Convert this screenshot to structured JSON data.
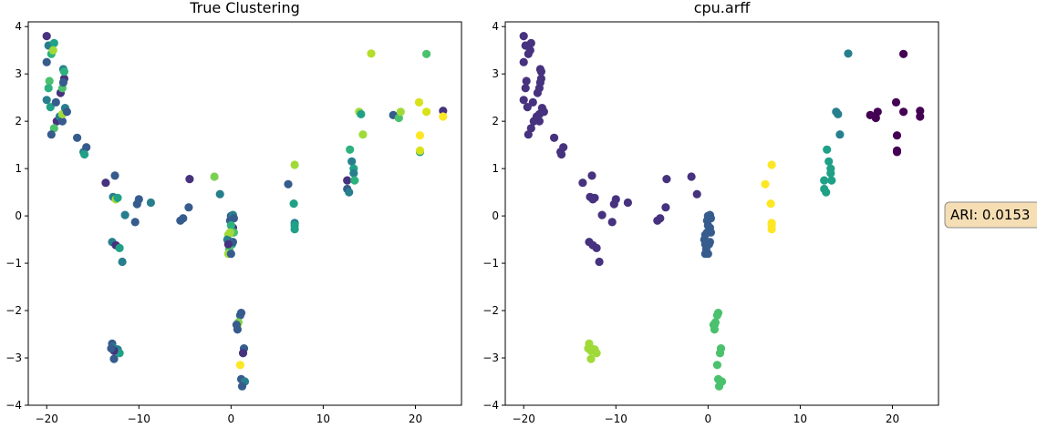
{
  "chart_data": [
    {
      "type": "scatter",
      "title": "True Clustering",
      "xlim": [
        -22,
        25
      ],
      "ylim": [
        -4,
        4.1
      ],
      "xticks": [
        -20,
        -10,
        0,
        10,
        20
      ],
      "yticks": [
        -4,
        -3,
        -2,
        -1,
        0,
        1,
        2,
        3,
        4
      ],
      "xticklabels": [
        "−20",
        "−10",
        "0",
        "10",
        "20"
      ],
      "yticklabels": [
        "−4",
        "−3",
        "−2",
        "−1",
        "0",
        "1",
        "2",
        "3",
        "4"
      ],
      "grid": false,
      "points": [
        [
          -20.0,
          3.8,
          "#46327e"
        ],
        [
          -19.8,
          3.6,
          "#277f8e"
        ],
        [
          -19.2,
          3.65,
          "#1fa187"
        ],
        [
          -19.5,
          3.42,
          "#2db27d"
        ],
        [
          -19.3,
          3.5,
          "#a0da39"
        ],
        [
          -20.0,
          3.25,
          "#365c8d"
        ],
        [
          -19.7,
          2.85,
          "#4ac16d"
        ],
        [
          -19.8,
          2.7,
          "#2db27d"
        ],
        [
          -20.0,
          2.45,
          "#277f8e"
        ],
        [
          -19.6,
          2.3,
          "#1fa187"
        ],
        [
          -19.0,
          2.4,
          "#365c8d"
        ],
        [
          -18.9,
          2.0,
          "#46327e"
        ],
        [
          -18.6,
          2.1,
          "#277f8e"
        ],
        [
          -18.3,
          2.0,
          "#365c8d"
        ],
        [
          -18.3,
          2.15,
          "#a0da39"
        ],
        [
          -18.0,
          2.28,
          "#277f8e"
        ],
        [
          -17.8,
          2.2,
          "#365c8d"
        ],
        [
          -19.2,
          1.85,
          "#4ac16d"
        ],
        [
          -19.5,
          1.72,
          "#365c8d"
        ],
        [
          -18.1,
          2.9,
          "#46327e"
        ],
        [
          -18.2,
          3.1,
          "#277f8e"
        ],
        [
          -18.1,
          3.05,
          "#2db27d"
        ],
        [
          -18.5,
          2.6,
          "#46327e"
        ],
        [
          -18.3,
          2.7,
          "#4ac16d"
        ],
        [
          -18.2,
          2.82,
          "#365c8d"
        ],
        [
          -16.7,
          1.65,
          "#365c8d"
        ],
        [
          -16.0,
          1.35,
          "#277f8e"
        ],
        [
          -15.7,
          1.45,
          "#365c8d"
        ],
        [
          -15.9,
          1.3,
          "#1fa187"
        ],
        [
          -13.6,
          0.7,
          "#46327e"
        ],
        [
          -12.6,
          0.85,
          "#365c8d"
        ],
        [
          -12.8,
          0.4,
          "#277f8e"
        ],
        [
          -12.5,
          0.35,
          "#a0da39"
        ],
        [
          -12.3,
          0.38,
          "#1fa187"
        ],
        [
          -11.5,
          0.02,
          "#277f8e"
        ],
        [
          -10.2,
          0.25,
          "#365c8d"
        ],
        [
          -10.0,
          0.35,
          "#365c8d"
        ],
        [
          -10.4,
          -0.13,
          "#365c8d"
        ],
        [
          -8.7,
          0.28,
          "#277f8e"
        ],
        [
          -4.5,
          0.78,
          "#46327e"
        ],
        [
          -4.6,
          0.18,
          "#365c8d"
        ],
        [
          -5.2,
          -0.05,
          "#365c8d"
        ],
        [
          -5.5,
          -0.1,
          "#365c8d"
        ],
        [
          -1.8,
          0.83,
          "#7ad151"
        ],
        [
          -1.2,
          0.46,
          "#277f8e"
        ],
        [
          -12.9,
          -0.55,
          "#277f8e"
        ],
        [
          -12.5,
          -0.62,
          "#46327e"
        ],
        [
          -12.1,
          -0.68,
          "#1fa187"
        ],
        [
          -11.8,
          -0.97,
          "#277f8e"
        ],
        [
          0.0,
          0.0,
          "#365c8d"
        ],
        [
          0.2,
          0.02,
          "#277f8e"
        ],
        [
          0.3,
          -0.05,
          "#365c8d"
        ],
        [
          0.2,
          -0.25,
          "#46327e"
        ],
        [
          -0.1,
          -0.1,
          "#365c8d"
        ],
        [
          0.0,
          -0.2,
          "#2db27d"
        ],
        [
          0.3,
          -0.35,
          "#4ac16d"
        ],
        [
          -0.3,
          -0.4,
          "#a0da39"
        ],
        [
          -0.4,
          -0.5,
          "#277f8e"
        ],
        [
          0.1,
          -0.6,
          "#1fa187"
        ],
        [
          -0.2,
          -0.7,
          "#4ac16d"
        ],
        [
          -0.3,
          -0.8,
          "#a0da39"
        ],
        [
          0.0,
          -0.8,
          "#365c8d"
        ],
        [
          0.2,
          -0.55,
          "#365c8d"
        ],
        [
          -0.1,
          -0.35,
          "#a0da39"
        ],
        [
          -0.3,
          -0.6,
          "#46327e"
        ],
        [
          -12.9,
          -2.7,
          "#365c8d"
        ],
        [
          -12.8,
          -2.78,
          "#277f8e"
        ],
        [
          -12.7,
          -3.02,
          "#365c8d"
        ],
        [
          -12.3,
          -2.82,
          "#277f8e"
        ],
        [
          -12.1,
          -2.9,
          "#1fa187"
        ],
        [
          -12.7,
          -2.85,
          "#46327e"
        ],
        [
          -13.0,
          -2.8,
          "#365c8d"
        ],
        [
          1.1,
          -2.05,
          "#365c8d"
        ],
        [
          1.0,
          -2.1,
          "#365c8d"
        ],
        [
          0.8,
          -2.25,
          "#7ad151"
        ],
        [
          0.7,
          -2.3,
          "#a0da39"
        ],
        [
          0.6,
          -2.3,
          "#365c8d"
        ],
        [
          0.7,
          -2.4,
          "#365c8d"
        ],
        [
          1.4,
          -2.8,
          "#365c8d"
        ],
        [
          1.3,
          -2.9,
          "#46327e"
        ],
        [
          1.0,
          -3.15,
          "#fde725"
        ],
        [
          1.1,
          -3.45,
          "#365c8d"
        ],
        [
          1.5,
          -3.5,
          "#277f8e"
        ],
        [
          1.2,
          -3.6,
          "#365c8d"
        ],
        [
          6.2,
          0.67,
          "#365c8d"
        ],
        [
          6.9,
          1.08,
          "#a0da39"
        ],
        [
          6.8,
          0.26,
          "#1fa187"
        ],
        [
          6.9,
          -0.15,
          "#277f8e"
        ],
        [
          6.9,
          -0.2,
          "#1fa187"
        ],
        [
          6.9,
          -0.28,
          "#1fa187"
        ],
        [
          12.6,
          0.75,
          "#46327e"
        ],
        [
          12.6,
          0.57,
          "#365c8d"
        ],
        [
          12.8,
          0.5,
          "#277f8e"
        ],
        [
          12.9,
          1.4,
          "#2db27d"
        ],
        [
          13.1,
          1.15,
          "#277f8e"
        ],
        [
          13.3,
          1.0,
          "#1fa187"
        ],
        [
          13.3,
          0.9,
          "#277f8e"
        ],
        [
          13.4,
          0.75,
          "#2db27d"
        ],
        [
          13.9,
          2.2,
          "#a0da39"
        ],
        [
          14.1,
          2.15,
          "#1fa187"
        ],
        [
          14.3,
          1.72,
          "#a0da39"
        ],
        [
          15.2,
          3.43,
          "#b5de2b"
        ],
        [
          17.6,
          2.13,
          "#365c8d"
        ],
        [
          18.2,
          2.07,
          "#4ac16d"
        ],
        [
          18.4,
          2.2,
          "#a0da39"
        ],
        [
          20.4,
          2.4,
          "#d8e219"
        ],
        [
          20.5,
          1.7,
          "#fde725"
        ],
        [
          20.5,
          1.35,
          "#1fa187"
        ],
        [
          20.5,
          1.38,
          "#d8e219"
        ],
        [
          21.2,
          2.2,
          "#d8e219"
        ],
        [
          21.2,
          3.42,
          "#4ac16d"
        ],
        [
          23.0,
          2.22,
          "#46327e"
        ],
        [
          23.0,
          2.1,
          "#fde725"
        ]
      ]
    },
    {
      "type": "scatter",
      "title": "cpu.arff",
      "xlim": [
        -22,
        25
      ],
      "ylim": [
        -4,
        4.1
      ],
      "xticks": [
        -20,
        -10,
        0,
        10,
        20
      ],
      "yticks": [
        -4,
        -3,
        -2,
        -1,
        0,
        1,
        2,
        3,
        4
      ],
      "xticklabels": [
        "−20",
        "−10",
        "0",
        "10",
        "20"
      ],
      "yticklabels": [
        "−4",
        "−3",
        "−2",
        "−1",
        "0",
        "1",
        "2",
        "3",
        "4"
      ],
      "grid": false,
      "points": [
        [
          -20.0,
          3.8,
          "#46327e"
        ],
        [
          -19.8,
          3.6,
          "#46327e"
        ],
        [
          -19.2,
          3.65,
          "#46327e"
        ],
        [
          -19.5,
          3.42,
          "#46327e"
        ],
        [
          -19.3,
          3.5,
          "#46327e"
        ],
        [
          -20.0,
          3.25,
          "#46327e"
        ],
        [
          -19.7,
          2.85,
          "#46327e"
        ],
        [
          -19.8,
          2.7,
          "#46327e"
        ],
        [
          -20.0,
          2.45,
          "#46327e"
        ],
        [
          -19.6,
          2.3,
          "#46327e"
        ],
        [
          -19.0,
          2.4,
          "#46327e"
        ],
        [
          -18.9,
          2.0,
          "#46327e"
        ],
        [
          -18.6,
          2.1,
          "#46327e"
        ],
        [
          -18.3,
          2.0,
          "#46327e"
        ],
        [
          -18.3,
          2.15,
          "#46327e"
        ],
        [
          -18.0,
          2.28,
          "#46327e"
        ],
        [
          -17.8,
          2.2,
          "#46327e"
        ],
        [
          -19.2,
          1.85,
          "#46327e"
        ],
        [
          -19.5,
          1.72,
          "#46327e"
        ],
        [
          -18.1,
          2.9,
          "#46327e"
        ],
        [
          -18.2,
          3.1,
          "#46327e"
        ],
        [
          -18.1,
          3.05,
          "#46327e"
        ],
        [
          -18.5,
          2.6,
          "#46327e"
        ],
        [
          -18.3,
          2.7,
          "#46327e"
        ],
        [
          -18.2,
          2.82,
          "#46327e"
        ],
        [
          -16.7,
          1.65,
          "#46327e"
        ],
        [
          -16.0,
          1.35,
          "#46327e"
        ],
        [
          -15.7,
          1.45,
          "#46327e"
        ],
        [
          -15.9,
          1.3,
          "#46327e"
        ],
        [
          -13.6,
          0.7,
          "#46327e"
        ],
        [
          -12.6,
          0.85,
          "#46327e"
        ],
        [
          -12.8,
          0.4,
          "#46327e"
        ],
        [
          -12.5,
          0.35,
          "#46327e"
        ],
        [
          -12.3,
          0.38,
          "#46327e"
        ],
        [
          -11.5,
          0.02,
          "#46327e"
        ],
        [
          -10.2,
          0.25,
          "#46327e"
        ],
        [
          -10.0,
          0.35,
          "#46327e"
        ],
        [
          -10.4,
          -0.13,
          "#46327e"
        ],
        [
          -8.7,
          0.28,
          "#46327e"
        ],
        [
          -4.5,
          0.78,
          "#46327e"
        ],
        [
          -4.6,
          0.18,
          "#46327e"
        ],
        [
          -5.2,
          -0.05,
          "#46327e"
        ],
        [
          -5.5,
          -0.1,
          "#46327e"
        ],
        [
          -1.8,
          0.83,
          "#46327e"
        ],
        [
          -1.2,
          0.46,
          "#46327e"
        ],
        [
          -12.9,
          -0.55,
          "#46327e"
        ],
        [
          -12.5,
          -0.62,
          "#46327e"
        ],
        [
          -12.1,
          -0.68,
          "#46327e"
        ],
        [
          -11.8,
          -0.97,
          "#46327e"
        ],
        [
          0.0,
          0.0,
          "#365c8d"
        ],
        [
          0.2,
          0.02,
          "#365c8d"
        ],
        [
          0.3,
          -0.05,
          "#365c8d"
        ],
        [
          0.2,
          -0.25,
          "#365c8d"
        ],
        [
          -0.1,
          -0.1,
          "#365c8d"
        ],
        [
          0.0,
          -0.2,
          "#365c8d"
        ],
        [
          0.3,
          -0.35,
          "#365c8d"
        ],
        [
          -0.3,
          -0.4,
          "#365c8d"
        ],
        [
          -0.4,
          -0.5,
          "#365c8d"
        ],
        [
          0.1,
          -0.6,
          "#365c8d"
        ],
        [
          -0.2,
          -0.7,
          "#365c8d"
        ],
        [
          -0.3,
          -0.8,
          "#365c8d"
        ],
        [
          0.0,
          -0.8,
          "#365c8d"
        ],
        [
          0.2,
          -0.55,
          "#365c8d"
        ],
        [
          -0.1,
          -0.35,
          "#365c8d"
        ],
        [
          -0.3,
          -0.6,
          "#365c8d"
        ],
        [
          -12.9,
          -2.7,
          "#a0da39"
        ],
        [
          -12.8,
          -2.78,
          "#a0da39"
        ],
        [
          -12.7,
          -3.02,
          "#a0da39"
        ],
        [
          -12.3,
          -2.82,
          "#a0da39"
        ],
        [
          -12.1,
          -2.9,
          "#a0da39"
        ],
        [
          -12.7,
          -2.85,
          "#a0da39"
        ],
        [
          -13.0,
          -2.8,
          "#a0da39"
        ],
        [
          1.1,
          -2.05,
          "#4ac16d"
        ],
        [
          1.0,
          -2.1,
          "#4ac16d"
        ],
        [
          0.8,
          -2.25,
          "#4ac16d"
        ],
        [
          0.7,
          -2.3,
          "#4ac16d"
        ],
        [
          0.6,
          -2.3,
          "#4ac16d"
        ],
        [
          0.7,
          -2.4,
          "#4ac16d"
        ],
        [
          1.4,
          -2.8,
          "#4ac16d"
        ],
        [
          1.3,
          -2.9,
          "#4ac16d"
        ],
        [
          1.0,
          -3.15,
          "#4ac16d"
        ],
        [
          1.1,
          -3.45,
          "#4ac16d"
        ],
        [
          1.5,
          -3.5,
          "#4ac16d"
        ],
        [
          1.2,
          -3.6,
          "#4ac16d"
        ],
        [
          6.2,
          0.67,
          "#fde725"
        ],
        [
          6.9,
          1.08,
          "#fde725"
        ],
        [
          6.8,
          0.26,
          "#fde725"
        ],
        [
          6.9,
          -0.15,
          "#fde725"
        ],
        [
          6.9,
          -0.2,
          "#fde725"
        ],
        [
          6.9,
          -0.28,
          "#fde725"
        ],
        [
          12.6,
          0.75,
          "#1fa187"
        ],
        [
          12.6,
          0.57,
          "#1fa187"
        ],
        [
          12.8,
          0.5,
          "#1fa187"
        ],
        [
          12.9,
          1.4,
          "#1fa187"
        ],
        [
          13.1,
          1.15,
          "#1fa187"
        ],
        [
          13.3,
          1.0,
          "#1fa187"
        ],
        [
          13.3,
          0.9,
          "#1fa187"
        ],
        [
          13.4,
          0.75,
          "#1fa187"
        ],
        [
          13.9,
          2.2,
          "#277f8e"
        ],
        [
          14.1,
          2.15,
          "#277f8e"
        ],
        [
          14.3,
          1.72,
          "#277f8e"
        ],
        [
          15.2,
          3.43,
          "#277f8e"
        ],
        [
          17.6,
          2.13,
          "#440154"
        ],
        [
          18.2,
          2.07,
          "#440154"
        ],
        [
          18.4,
          2.2,
          "#440154"
        ],
        [
          20.4,
          2.4,
          "#440154"
        ],
        [
          20.5,
          1.7,
          "#440154"
        ],
        [
          20.5,
          1.35,
          "#440154"
        ],
        [
          20.5,
          1.38,
          "#440154"
        ],
        [
          21.2,
          2.2,
          "#440154"
        ],
        [
          21.2,
          3.42,
          "#440154"
        ],
        [
          23.0,
          2.22,
          "#440154"
        ],
        [
          23.0,
          2.1,
          "#440154"
        ]
      ]
    }
  ],
  "annotation": {
    "text": "ARI: 0.0153",
    "box_fill": "#f5deb3",
    "box_stroke": "#8c8c8c"
  }
}
